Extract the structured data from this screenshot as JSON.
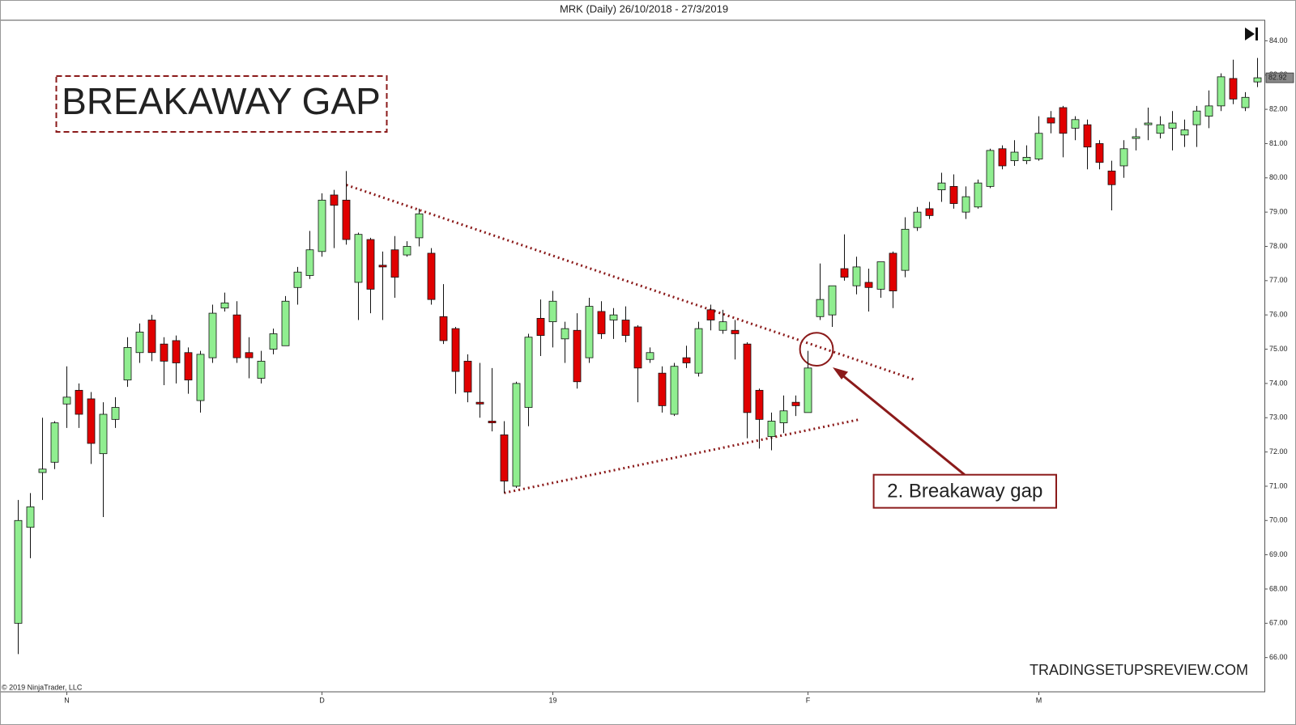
{
  "chart_data": {
    "type": "candlestick",
    "title": "MRK (Daily)  26/10/2018 - 27/3/2019",
    "annotations": {
      "heading": "BREAKAWAY GAP",
      "callout": "2. Breakaway gap",
      "watermark": "TRADINGSETUPSREVIEW.COM",
      "copyright": "© 2019 NinjaTrader, LLC"
    },
    "categories": [
      null,
      null,
      null,
      null,
      "N",
      null,
      null,
      null,
      null,
      null,
      null,
      null,
      null,
      null,
      null,
      null,
      null,
      null,
      null,
      null,
      null,
      null,
      null,
      null,
      null,
      "D",
      null,
      null,
      null,
      null,
      null,
      null,
      null,
      null,
      null,
      null,
      null,
      null,
      null,
      null,
      null,
      null,
      null,
      null,
      "19",
      null,
      null,
      null,
      null,
      null,
      null,
      null,
      null,
      null,
      null,
      null,
      null,
      null,
      null,
      null,
      null,
      null,
      null,
      null,
      null,
      "F",
      null,
      null,
      null,
      null,
      null,
      null,
      null,
      null,
      null,
      null,
      null,
      null,
      null,
      null,
      null,
      null,
      null,
      null,
      "M",
      null,
      null,
      null,
      null,
      null,
      null,
      null,
      null,
      null,
      null,
      null,
      null,
      null,
      null,
      null,
      null,
      null,
      null
    ],
    "open": [
      67.0,
      69.8,
      71.4,
      71.7,
      73.4,
      73.8,
      73.55,
      71.95,
      72.95,
      74.1,
      74.9,
      75.85,
      75.15,
      75.25,
      74.9,
      73.5,
      74.75,
      76.2,
      76.0,
      74.9,
      74.15,
      75.0,
      75.1,
      76.8,
      77.15,
      77.85,
      79.5,
      79.35,
      76.95,
      78.2,
      77.45,
      77.9,
      77.75,
      78.25,
      77.8,
      75.95,
      75.6,
      74.65,
      73.45,
      72.9,
      72.5,
      71.0,
      73.3,
      75.9,
      75.8,
      75.3,
      75.55,
      74.75,
      76.1,
      75.85,
      75.85,
      75.65,
      74.7,
      74.3,
      73.1,
      74.75,
      74.3,
      76.15,
      75.55,
      75.55,
      75.15,
      73.8,
      72.45,
      72.85,
      73.45,
      73.15,
      75.95,
      76.0,
      77.35,
      76.85,
      76.95,
      76.75,
      77.8,
      77.3,
      78.55,
      79.1,
      79.65,
      79.75,
      79.0,
      79.15,
      79.75,
      80.85,
      80.5,
      80.5,
      80.55,
      81.75,
      82.05,
      81.45,
      81.55,
      81.0,
      80.2,
      80.35,
      81.15,
      81.55,
      81.3,
      81.45,
      81.25,
      81.55,
      81.8,
      82.1,
      82.9,
      82.05,
      82.8
    ],
    "high": [
      70.6,
      70.8,
      73.0,
      72.9,
      74.5,
      74.0,
      73.75,
      73.45,
      73.6,
      75.35,
      75.75,
      76.0,
      75.35,
      75.4,
      75.05,
      74.95,
      76.3,
      76.65,
      76.4,
      75.35,
      74.95,
      75.6,
      76.55,
      77.4,
      78.45,
      79.55,
      79.65,
      80.2,
      78.4,
      78.25,
      77.85,
      78.3,
      78.15,
      79.1,
      77.95,
      76.9,
      75.65,
      74.85,
      74.6,
      74.45,
      72.9,
      74.05,
      75.45,
      76.45,
      76.7,
      75.8,
      76.05,
      76.5,
      76.4,
      76.2,
      76.25,
      75.7,
      75.05,
      74.5,
      74.6,
      75.1,
      75.8,
      76.3,
      76.15,
      75.85,
      75.2,
      73.85,
      73.15,
      73.65,
      73.65,
      74.95,
      77.5,
      76.85,
      78.35,
      77.7,
      77.35,
      77.55,
      77.85,
      78.85,
      79.15,
      79.3,
      80.15,
      80.1,
      79.75,
      79.95,
      80.85,
      80.95,
      81.1,
      80.95,
      81.8,
      81.95,
      82.1,
      81.8,
      81.7,
      81.1,
      80.5,
      81.1,
      81.45,
      82.05,
      81.8,
      81.95,
      81.7,
      82.1,
      82.55,
      83.05,
      83.45,
      82.5,
      83.5
    ],
    "low": [
      66.1,
      68.9,
      70.6,
      71.5,
      72.7,
      72.7,
      71.65,
      70.1,
      72.7,
      73.9,
      74.6,
      74.65,
      73.95,
      74.0,
      73.7,
      73.15,
      74.6,
      76.1,
      74.6,
      74.15,
      74.0,
      74.85,
      75.1,
      76.3,
      77.05,
      77.7,
      77.95,
      78.05,
      75.85,
      76.05,
      75.85,
      76.5,
      77.7,
      78.0,
      76.3,
      75.15,
      73.7,
      73.45,
      73.0,
      72.6,
      70.8,
      70.95,
      72.75,
      74.8,
      75.05,
      74.6,
      73.85,
      74.6,
      75.3,
      75.3,
      75.2,
      73.45,
      74.6,
      73.15,
      73.05,
      74.45,
      74.2,
      75.55,
      75.45,
      74.7,
      72.4,
      72.1,
      72.05,
      72.55,
      73.05,
      73.15,
      75.85,
      75.65,
      77.0,
      76.6,
      76.1,
      76.5,
      76.2,
      77.1,
      78.45,
      78.8,
      79.3,
      79.1,
      78.8,
      79.1,
      79.7,
      80.25,
      80.35,
      80.4,
      80.5,
      81.3,
      80.6,
      81.1,
      80.25,
      80.25,
      79.05,
      80.0,
      80.8,
      81.1,
      81.15,
      80.8,
      80.9,
      80.9,
      81.45,
      81.95,
      82.15,
      81.95,
      82.65
    ],
    "close": [
      70.0,
      70.4,
      71.5,
      72.85,
      73.6,
      73.1,
      72.25,
      73.1,
      73.3,
      75.05,
      75.5,
      74.9,
      74.65,
      74.6,
      74.1,
      74.85,
      76.05,
      76.35,
      74.75,
      74.75,
      74.65,
      75.45,
      76.4,
      77.25,
      77.9,
      79.35,
      79.2,
      78.2,
      78.35,
      76.75,
      77.4,
      77.1,
      78.0,
      78.95,
      76.45,
      75.25,
      74.35,
      73.75,
      73.4,
      72.85,
      71.15,
      74.0,
      75.35,
      75.4,
      76.4,
      75.6,
      74.05,
      76.25,
      75.45,
      76.0,
      75.4,
      74.45,
      74.9,
      73.35,
      74.5,
      74.6,
      75.6,
      75.85,
      75.8,
      75.45,
      73.15,
      72.95,
      72.9,
      73.2,
      73.35,
      74.45,
      76.45,
      76.85,
      77.1,
      77.4,
      76.8,
      77.55,
      76.7,
      78.5,
      79.0,
      78.9,
      79.85,
      79.25,
      79.45,
      79.85,
      80.8,
      80.35,
      80.75,
      80.6,
      81.3,
      81.6,
      81.3,
      81.7,
      80.9,
      80.45,
      79.8,
      80.85,
      81.2,
      81.6,
      81.55,
      81.6,
      81.4,
      81.95,
      82.1,
      82.95,
      82.3,
      82.35,
      82.92
    ],
    "last_price": {
      "value": 82.92,
      "label": "82.92"
    },
    "up_color": "#90ee90",
    "down_color": "#e00000",
    "ylim": [
      65.0,
      84.6
    ],
    "yticks": [
      {
        "value": 66,
        "label": "66.00"
      },
      {
        "value": 67,
        "label": "67.00"
      },
      {
        "value": 68,
        "label": "68.00"
      },
      {
        "value": 69,
        "label": "69.00"
      },
      {
        "value": 70,
        "label": "70.00"
      },
      {
        "value": 71,
        "label": "71.00"
      },
      {
        "value": 72,
        "label": "72.00"
      },
      {
        "value": 73,
        "label": "73.00"
      },
      {
        "value": 74,
        "label": "74.00"
      },
      {
        "value": 75,
        "label": "75.00"
      },
      {
        "value": 76,
        "label": "76.00"
      },
      {
        "value": 77,
        "label": "77.00"
      },
      {
        "value": 78,
        "label": "78.00"
      },
      {
        "value": 79,
        "label": "79.00"
      },
      {
        "value": 80,
        "label": "80.00"
      },
      {
        "value": 81,
        "label": "81.00"
      },
      {
        "value": 82,
        "label": "82.00"
      },
      {
        "value": 83,
        "label": "83.00"
      },
      {
        "value": 84,
        "label": "84.00"
      }
    ]
  }
}
